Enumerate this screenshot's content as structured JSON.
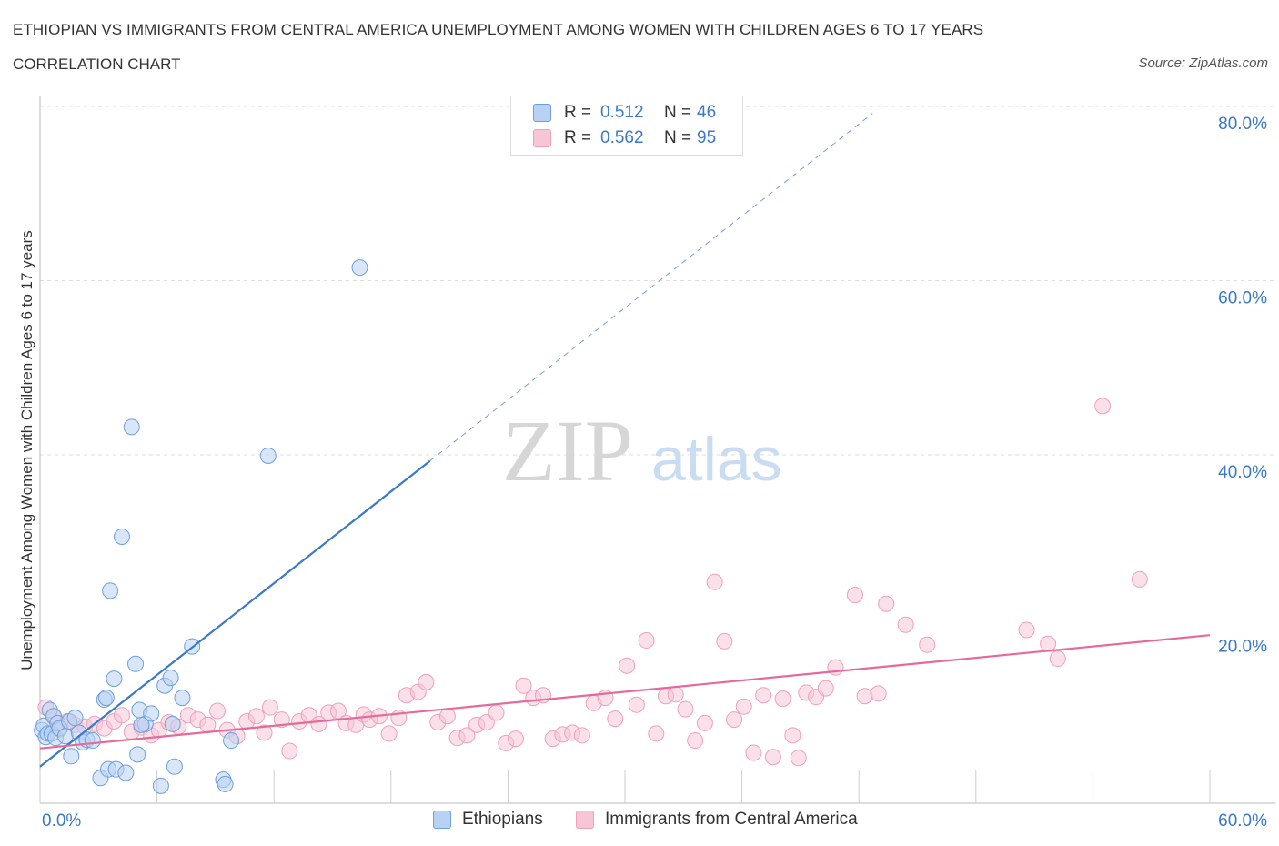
{
  "header": {
    "title": "ETHIOPIAN VS IMMIGRANTS FROM CENTRAL AMERICA UNEMPLOYMENT AMONG WOMEN WITH CHILDREN AGES 6 TO 17 YEARS",
    "subtitle": "CORRELATION CHART",
    "source": "Source: ZipAtlas.com"
  },
  "watermark": {
    "zip": "ZIP",
    "atlas": "atlas"
  },
  "colors": {
    "blue": "#3a78c9",
    "blue_fill": "#b8d2f3",
    "pink": "#e56a9a",
    "pink_fill": "#f6c6d6",
    "grid": "#dddddd"
  },
  "legend": {
    "rows": [
      {
        "r_label": "R =",
        "r_value": "0.512",
        "n_label": "N =",
        "n_value": "46",
        "color": "blue"
      },
      {
        "r_label": "R =",
        "r_value": "0.562",
        "n_label": "N =",
        "n_value": "95",
        "color": "pink"
      }
    ]
  },
  "bottom_legend": {
    "items": [
      {
        "label": "Ethiopians",
        "color": "blue"
      },
      {
        "label": "Immigrants from Central America",
        "color": "pink"
      }
    ]
  },
  "chart_data": {
    "type": "scatter",
    "title": "ETHIOPIAN VS IMMIGRANTS FROM CENTRAL AMERICA UNEMPLOYMENT AMONG WOMEN WITH CHILDREN AGES 6 TO 17 YEARS",
    "subtitle": "CORRELATION CHART",
    "xlabel": "",
    "ylabel": "Unemployment Among Women with Children Ages 6 to 17 years",
    "xlim": [
      0,
      60
    ],
    "ylim": [
      0,
      80
    ],
    "x_tick_labels": [
      "0.0%",
      "60.0%"
    ],
    "y_tick_labels": [
      "20.0%",
      "40.0%",
      "60.0%",
      "80.0%"
    ],
    "y_ticks": [
      20,
      40,
      60,
      80
    ],
    "grid": "horizontal dashed",
    "legend_placement": "top-center",
    "series": [
      {
        "name": "Ethiopians",
        "color": "blue",
        "r": 0.512,
        "n": 46,
        "trend": {
          "x": [
            0,
            20
          ],
          "y": [
            4.2,
            39.3
          ]
        },
        "trend_extension": {
          "x": [
            20,
            42.7
          ],
          "y": [
            39.3,
            79.2
          ]
        },
        "points": [
          [
            0.1,
            8.4
          ],
          [
            0.2,
            8.9
          ],
          [
            0.3,
            7.6
          ],
          [
            0.4,
            8.0
          ],
          [
            0.5,
            10.7
          ],
          [
            0.6,
            8.0
          ],
          [
            0.7,
            10.0
          ],
          [
            0.8,
            7.5
          ],
          [
            0.9,
            9.2
          ],
          [
            1.0,
            8.6
          ],
          [
            1.3,
            7.7
          ],
          [
            1.5,
            9.4
          ],
          [
            1.6,
            5.4
          ],
          [
            1.8,
            9.8
          ],
          [
            2.0,
            8.1
          ],
          [
            2.2,
            7.0
          ],
          [
            2.4,
            7.3
          ],
          [
            2.7,
            7.2
          ],
          [
            3.1,
            2.9
          ],
          [
            3.3,
            11.9
          ],
          [
            3.4,
            12.1
          ],
          [
            3.5,
            3.9
          ],
          [
            3.8,
            14.3
          ],
          [
            3.9,
            3.9
          ],
          [
            4.2,
            30.6
          ],
          [
            4.4,
            3.5
          ],
          [
            4.7,
            43.2
          ],
          [
            4.9,
            16.0
          ],
          [
            5.0,
            5.6
          ],
          [
            5.1,
            10.7
          ],
          [
            5.4,
            9.1
          ],
          [
            5.7,
            10.3
          ],
          [
            6.2,
            2.0
          ],
          [
            6.4,
            13.5
          ],
          [
            6.7,
            14.4
          ],
          [
            6.8,
            9.1
          ],
          [
            6.9,
            4.2
          ],
          [
            7.3,
            12.1
          ],
          [
            7.8,
            18.0
          ],
          [
            9.4,
            2.7
          ],
          [
            9.5,
            2.2
          ],
          [
            9.8,
            7.2
          ],
          [
            11.7,
            39.9
          ],
          [
            16.4,
            61.5
          ],
          [
            3.6,
            24.4
          ],
          [
            5.2,
            9.0
          ]
        ]
      },
      {
        "name": "Immigrants from Central America",
        "color": "pink",
        "r": 0.562,
        "n": 95,
        "trend": {
          "x": [
            0,
            60
          ],
          "y": [
            6.3,
            19.3
          ]
        },
        "points": [
          [
            0.3,
            11.0
          ],
          [
            0.7,
            9.9
          ],
          [
            1.0,
            8.5
          ],
          [
            1.4,
            9.4
          ],
          [
            1.8,
            9.0
          ],
          [
            2.3,
            8.8
          ],
          [
            2.8,
            9.1
          ],
          [
            3.3,
            8.6
          ],
          [
            3.8,
            9.4
          ],
          [
            4.2,
            10.1
          ],
          [
            4.7,
            8.2
          ],
          [
            5.2,
            8.7
          ],
          [
            5.7,
            7.8
          ],
          [
            6.1,
            8.4
          ],
          [
            6.6,
            9.3
          ],
          [
            7.1,
            8.8
          ],
          [
            7.6,
            10.1
          ],
          [
            8.1,
            9.6
          ],
          [
            8.6,
            9.0
          ],
          [
            9.1,
            10.6
          ],
          [
            9.6,
            8.4
          ],
          [
            10.1,
            7.7
          ],
          [
            10.6,
            9.4
          ],
          [
            11.1,
            10.0
          ],
          [
            11.5,
            8.1
          ],
          [
            11.8,
            11.0
          ],
          [
            12.4,
            9.6
          ],
          [
            12.8,
            6.0
          ],
          [
            13.3,
            9.4
          ],
          [
            13.8,
            10.1
          ],
          [
            14.3,
            9.1
          ],
          [
            14.8,
            10.4
          ],
          [
            15.3,
            10.6
          ],
          [
            15.7,
            9.2
          ],
          [
            16.2,
            9.0
          ],
          [
            16.6,
            10.2
          ],
          [
            16.9,
            9.6
          ],
          [
            17.4,
            10.0
          ],
          [
            17.9,
            8.0
          ],
          [
            18.4,
            9.8
          ],
          [
            18.8,
            12.4
          ],
          [
            19.4,
            12.8
          ],
          [
            19.8,
            13.9
          ],
          [
            20.4,
            9.3
          ],
          [
            20.9,
            10.0
          ],
          [
            21.4,
            7.5
          ],
          [
            21.9,
            7.8
          ],
          [
            22.4,
            9.0
          ],
          [
            22.9,
            9.3
          ],
          [
            23.4,
            10.4
          ],
          [
            23.9,
            6.9
          ],
          [
            24.4,
            7.4
          ],
          [
            24.8,
            13.5
          ],
          [
            25.3,
            12.1
          ],
          [
            25.8,
            12.4
          ],
          [
            26.3,
            7.4
          ],
          [
            26.8,
            7.9
          ],
          [
            27.3,
            8.1
          ],
          [
            27.8,
            7.8
          ],
          [
            28.4,
            11.5
          ],
          [
            29.0,
            12.1
          ],
          [
            29.5,
            9.7
          ],
          [
            30.1,
            15.8
          ],
          [
            30.6,
            11.3
          ],
          [
            31.1,
            18.7
          ],
          [
            31.6,
            8.0
          ],
          [
            32.1,
            12.3
          ],
          [
            32.6,
            12.5
          ],
          [
            33.1,
            10.8
          ],
          [
            33.6,
            7.2
          ],
          [
            34.1,
            9.2
          ],
          [
            34.6,
            25.4
          ],
          [
            35.1,
            18.6
          ],
          [
            35.6,
            9.6
          ],
          [
            36.1,
            11.1
          ],
          [
            36.6,
            5.8
          ],
          [
            37.1,
            12.4
          ],
          [
            37.6,
            5.3
          ],
          [
            38.1,
            12.0
          ],
          [
            38.6,
            7.8
          ],
          [
            38.9,
            5.2
          ],
          [
            39.3,
            12.7
          ],
          [
            39.8,
            12.2
          ],
          [
            40.3,
            13.2
          ],
          [
            40.8,
            15.6
          ],
          [
            41.8,
            23.9
          ],
          [
            42.3,
            12.3
          ],
          [
            43.0,
            12.6
          ],
          [
            43.4,
            22.9
          ],
          [
            44.4,
            20.5
          ],
          [
            45.5,
            18.2
          ],
          [
            50.6,
            19.9
          ],
          [
            51.7,
            18.3
          ],
          [
            52.2,
            16.6
          ],
          [
            54.5,
            45.6
          ],
          [
            56.4,
            25.7
          ]
        ]
      }
    ]
  }
}
